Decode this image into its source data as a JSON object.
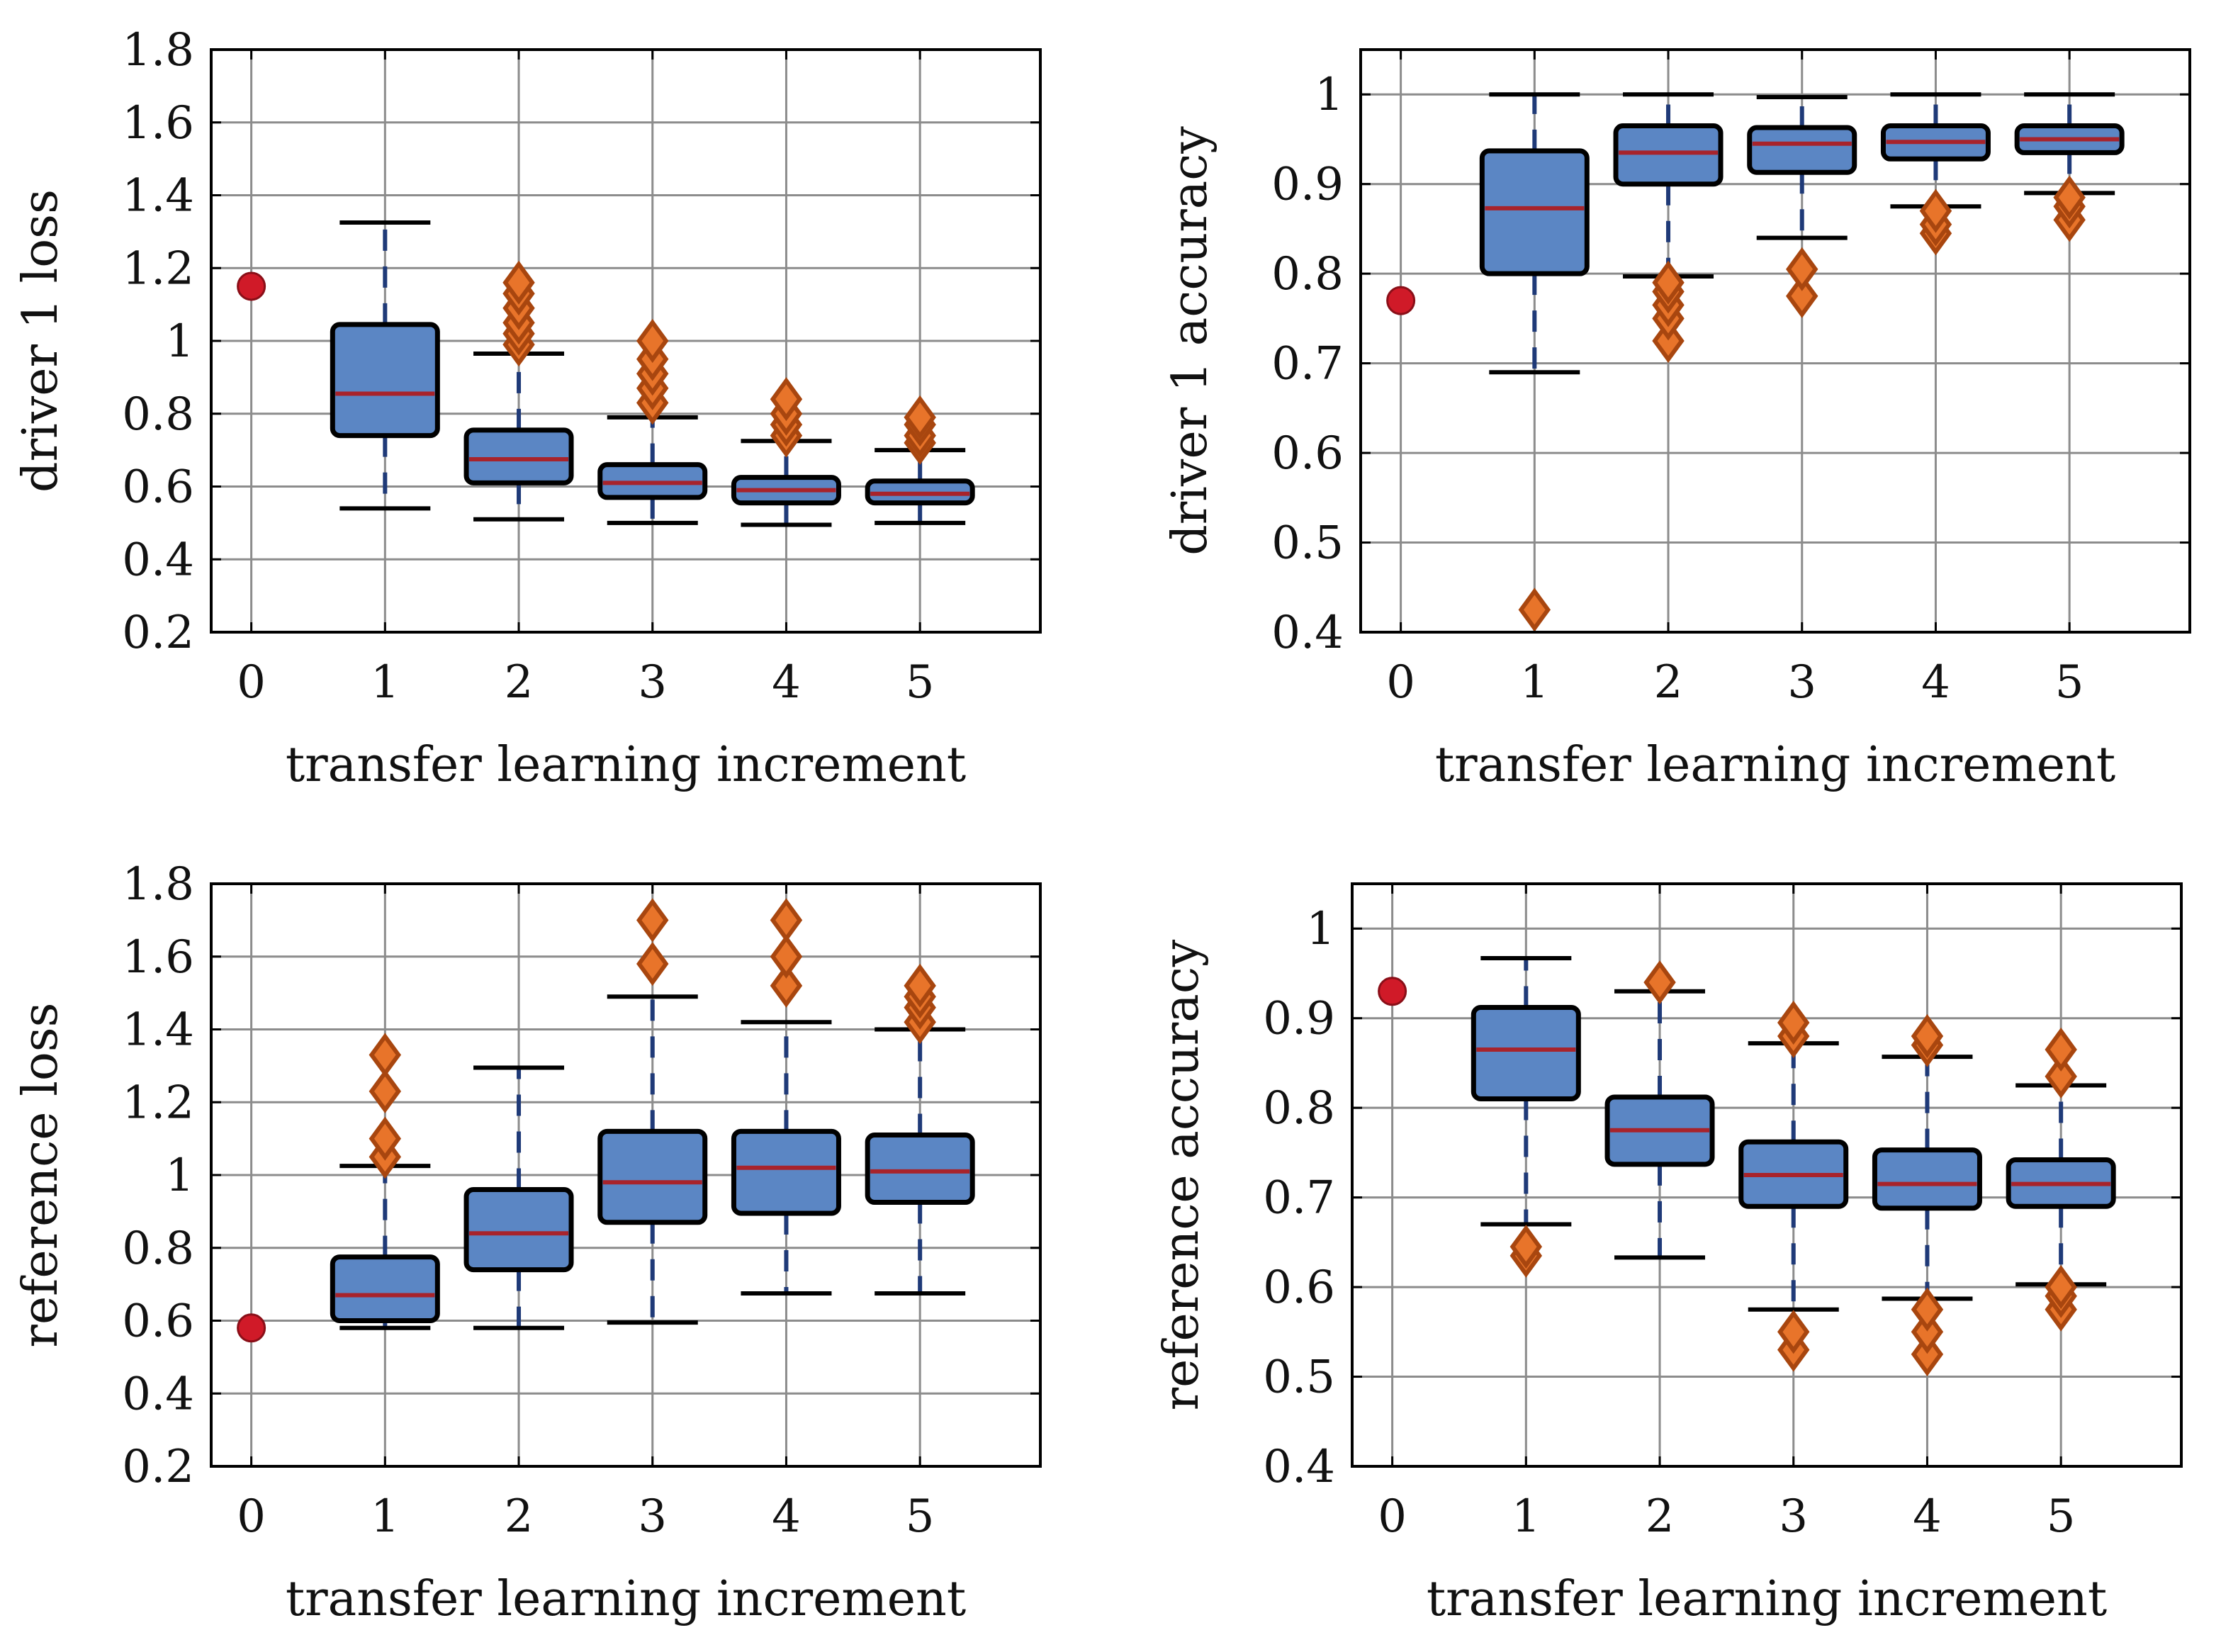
{
  "colors": {
    "box_fill": "#5b86c4",
    "box_edge": "#000000",
    "median": "#a8232b",
    "whisker": "#1f3a78",
    "cap": "#000000",
    "flier_fill": "#e8742a",
    "flier_edge": "#a8460f",
    "baseline_point": "#d01a28",
    "grid": "#8c8c8c"
  },
  "chart_data": [
    {
      "id": "driver1-loss",
      "type": "box",
      "title": "",
      "xlabel": "transfer learning increment",
      "ylabel": "driver 1 loss",
      "xlim": [
        -0.3,
        5.9
      ],
      "ylim": [
        0.2,
        1.8
      ],
      "xticks": [
        "0",
        "1",
        "2",
        "3",
        "4",
        "5"
      ],
      "yticks": [
        "0.2",
        "0.4",
        "0.6",
        "0.8",
        "1",
        "1.2",
        "1.4",
        "1.6",
        "1.8"
      ],
      "grid": true,
      "baseline": {
        "x": 0,
        "y": 1.15
      },
      "boxes": [
        {
          "x": 1,
          "whislo": 0.54,
          "q1": 0.74,
          "med": 0.855,
          "q3": 1.045,
          "whishi": 1.325,
          "fliers": []
        },
        {
          "x": 2,
          "whislo": 0.51,
          "q1": 0.61,
          "med": 0.675,
          "q3": 0.755,
          "whishi": 0.965,
          "fliers": [
            0.99,
            1.02,
            1.05,
            1.09,
            1.13,
            1.16
          ]
        },
        {
          "x": 3,
          "whislo": 0.5,
          "q1": 0.57,
          "med": 0.61,
          "q3": 0.66,
          "whishi": 0.79,
          "fliers": [
            0.83,
            0.87,
            0.91,
            0.95,
            1.0
          ]
        },
        {
          "x": 4,
          "whislo": 0.495,
          "q1": 0.555,
          "med": 0.59,
          "q3": 0.625,
          "whishi": 0.725,
          "fliers": [
            0.74,
            0.77,
            0.8,
            0.84
          ]
        },
        {
          "x": 5,
          "whislo": 0.5,
          "q1": 0.555,
          "med": 0.58,
          "q3": 0.615,
          "whishi": 0.7,
          "fliers": [
            0.72,
            0.74,
            0.77,
            0.79
          ]
        }
      ]
    },
    {
      "id": "driver1-accuracy",
      "type": "box",
      "title": "",
      "xlabel": "transfer learning increment",
      "ylabel": "driver 1 accuracy",
      "xlim": [
        -0.3,
        5.9
      ],
      "ylim": [
        0.4,
        1.05
      ],
      "xticks": [
        "0",
        "1",
        "2",
        "3",
        "4",
        "5"
      ],
      "yticks": [
        "0.4",
        "0.5",
        "0.6",
        "0.7",
        "0.8",
        "0.9",
        "1"
      ],
      "grid": true,
      "baseline": {
        "x": 0,
        "y": 0.77
      },
      "boxes": [
        {
          "x": 1,
          "whislo": 0.69,
          "q1": 0.8,
          "med": 0.873,
          "q3": 0.937,
          "whishi": 1.0,
          "fliers": [
            0.425
          ]
        },
        {
          "x": 2,
          "whislo": 0.797,
          "q1": 0.9,
          "med": 0.935,
          "q3": 0.965,
          "whishi": 1.0,
          "fliers": [
            0.725,
            0.75,
            0.765,
            0.78,
            0.79
          ]
        },
        {
          "x": 3,
          "whislo": 0.84,
          "q1": 0.913,
          "med": 0.945,
          "q3": 0.963,
          "whishi": 0.997,
          "fliers": [
            0.775,
            0.805
          ]
        },
        {
          "x": 4,
          "whislo": 0.875,
          "q1": 0.928,
          "med": 0.947,
          "q3": 0.965,
          "whishi": 1.0,
          "fliers": [
            0.845,
            0.855,
            0.87
          ]
        },
        {
          "x": 5,
          "whislo": 0.89,
          "q1": 0.935,
          "med": 0.95,
          "q3": 0.965,
          "whishi": 1.0,
          "fliers": [
            0.86,
            0.875,
            0.885
          ]
        }
      ]
    },
    {
      "id": "reference-loss",
      "type": "box",
      "title": "",
      "xlabel": "transfer learning increment",
      "ylabel": "reference loss",
      "xlim": [
        -0.3,
        5.9
      ],
      "ylim": [
        0.2,
        1.8
      ],
      "xticks": [
        "0",
        "1",
        "2",
        "3",
        "4",
        "5"
      ],
      "yticks": [
        "0.2",
        "0.4",
        "0.6",
        "0.8",
        "1",
        "1.2",
        "1.4",
        "1.6",
        "1.8"
      ],
      "grid": true,
      "baseline": {
        "x": 0,
        "y": 0.58
      },
      "boxes": [
        {
          "x": 1,
          "whislo": 0.58,
          "q1": 0.6,
          "med": 0.67,
          "q3": 0.775,
          "whishi": 1.025,
          "fliers": [
            1.05,
            1.1,
            1.23,
            1.33
          ]
        },
        {
          "x": 2,
          "whislo": 0.58,
          "q1": 0.74,
          "med": 0.84,
          "q3": 0.96,
          "whishi": 1.295,
          "fliers": []
        },
        {
          "x": 3,
          "whislo": 0.595,
          "q1": 0.87,
          "med": 0.98,
          "q3": 1.12,
          "whishi": 1.49,
          "fliers": [
            1.58,
            1.7
          ]
        },
        {
          "x": 4,
          "whislo": 0.675,
          "q1": 0.895,
          "med": 1.02,
          "q3": 1.12,
          "whishi": 1.42,
          "fliers": [
            1.52,
            1.6,
            1.7
          ]
        },
        {
          "x": 5,
          "whislo": 0.675,
          "q1": 0.925,
          "med": 1.01,
          "q3": 1.11,
          "whishi": 1.4,
          "fliers": [
            1.42,
            1.46,
            1.49,
            1.52
          ]
        }
      ]
    },
    {
      "id": "reference-accuracy",
      "type": "box",
      "title": "",
      "xlabel": "transfer learning increment",
      "ylabel": "reference accuracy",
      "xlim": [
        -0.3,
        5.9
      ],
      "ylim": [
        0.4,
        1.05
      ],
      "xticks": [
        "0",
        "1",
        "2",
        "3",
        "4",
        "5"
      ],
      "yticks": [
        "0.4",
        "0.5",
        "0.6",
        "0.7",
        "0.8",
        "0.9",
        "1"
      ],
      "grid": true,
      "baseline": {
        "x": 0,
        "y": 0.93
      },
      "boxes": [
        {
          "x": 1,
          "whislo": 0.67,
          "q1": 0.81,
          "med": 0.865,
          "q3": 0.912,
          "whishi": 0.967,
          "fliers": [
            0.635,
            0.645
          ]
        },
        {
          "x": 2,
          "whislo": 0.633,
          "q1": 0.737,
          "med": 0.775,
          "q3": 0.812,
          "whishi": 0.93,
          "fliers": [
            0.94
          ]
        },
        {
          "x": 3,
          "whislo": 0.575,
          "q1": 0.69,
          "med": 0.725,
          "q3": 0.762,
          "whishi": 0.872,
          "fliers": [
            0.53,
            0.55,
            0.88,
            0.895
          ]
        },
        {
          "x": 4,
          "whislo": 0.587,
          "q1": 0.688,
          "med": 0.715,
          "q3": 0.753,
          "whishi": 0.857,
          "fliers": [
            0.525,
            0.55,
            0.575,
            0.87,
            0.88
          ]
        },
        {
          "x": 5,
          "whislo": 0.603,
          "q1": 0.69,
          "med": 0.715,
          "q3": 0.742,
          "whishi": 0.825,
          "fliers": [
            0.575,
            0.59,
            0.6,
            0.835,
            0.865
          ]
        }
      ]
    }
  ]
}
